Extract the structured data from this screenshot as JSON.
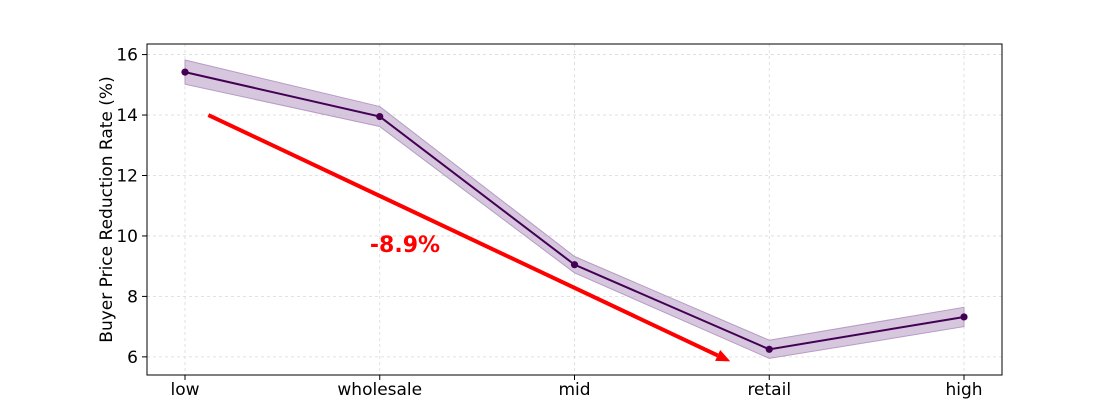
{
  "chart_data": {
    "type": "line",
    "categories": [
      "low",
      "wholesale",
      "mid",
      "retail",
      "high"
    ],
    "series": [
      {
        "values": [
          15.42,
          13.95,
          9.05,
          6.25,
          7.32
        ],
        "band_lower": [
          15.02,
          13.62,
          8.78,
          5.95,
          7.0
        ],
        "band_upper": [
          15.82,
          14.28,
          9.32,
          6.55,
          7.64
        ],
        "color": "#440154",
        "band_color": "#c4aed0"
      }
    ],
    "ylabel": "Buyer Price Reduction Rate (%)",
    "xlabel": "",
    "ylim": [
      5.4,
      16.35
    ],
    "yticks": [
      6,
      8,
      10,
      12,
      14,
      16
    ],
    "grid": true,
    "annotation": {
      "text": "-8.9%",
      "color": "#ff0000",
      "arrow_from": {
        "x": 0.12,
        "y": 14.0
      },
      "arrow_to": {
        "x": 2.8,
        "y": 5.85
      }
    }
  }
}
